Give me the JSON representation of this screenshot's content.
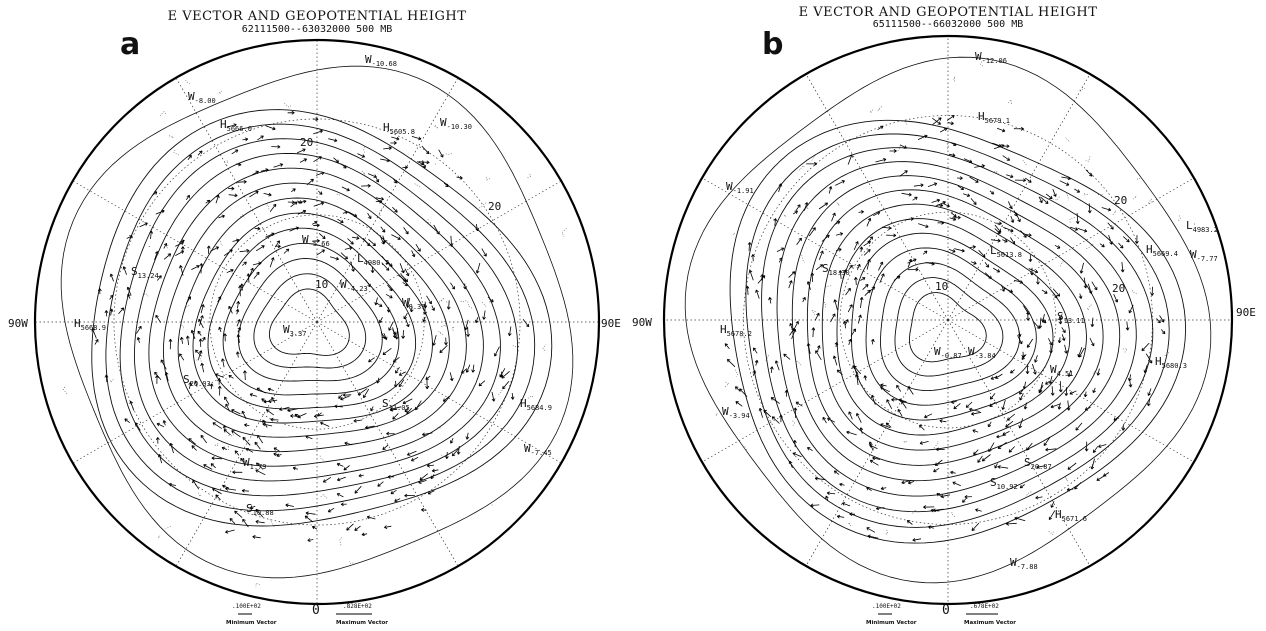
{
  "panels": [
    {
      "letter": "a",
      "title": "E VECTOR AND GEOPOTENTIAL HEIGHT",
      "subtitle": "62111500--63032000   500 MB",
      "left_label": "90W",
      "right_label": "90E",
      "contour_labels": [
        "20",
        "10",
        "20"
      ],
      "centers": [
        {
          "letter": "W",
          "sub": "-8.00"
        },
        {
          "letter": "W",
          "sub": "-10.68"
        },
        {
          "letter": "W",
          "sub": "-10.30"
        },
        {
          "letter": "H",
          "sub": "5666.0"
        },
        {
          "letter": "H",
          "sub": "5605.8"
        },
        {
          "letter": "S",
          "sub": "13.24"
        },
        {
          "letter": "H",
          "sub": "5668.9"
        },
        {
          "letter": "W",
          "sub": "-5.66"
        },
        {
          "letter": "L",
          "sub": "4980.7"
        },
        {
          "letter": "W",
          "sub": "-4.23"
        },
        {
          "letter": "W",
          "sub": "8.37"
        },
        {
          "letter": "W",
          "sub": "3.37"
        },
        {
          "letter": "S",
          "sub": "20.03"
        },
        {
          "letter": "S",
          "sub": "11.05"
        },
        {
          "letter": "H",
          "sub": "5684.9"
        },
        {
          "letter": "W",
          "sub": "-7.45"
        },
        {
          "letter": "W",
          "sub": "1.79"
        },
        {
          "letter": "S",
          "sub": "10.88"
        }
      ],
      "legend": {
        "min_value": ".100E+02",
        "min_label": "Minimum Vector",
        "zero": "0",
        "max_value": ".828E+02",
        "max_label": "Maximum Vector"
      }
    },
    {
      "letter": "b",
      "title": "E VECTOR AND GEOPOTENTIAL HEIGHT",
      "subtitle": "65111500--66032000   500 MB",
      "left_label": "90W",
      "right_label": "90E",
      "contour_labels": [
        "20",
        "20",
        "10"
      ],
      "centers": [
        {
          "letter": "W",
          "sub": "-12.06"
        },
        {
          "letter": "H",
          "sub": "5679.1"
        },
        {
          "letter": "W",
          "sub": "-1.91"
        },
        {
          "letter": "L",
          "sub": "5013.8"
        },
        {
          "letter": "L",
          "sub": "4983.2"
        },
        {
          "letter": "H",
          "sub": "5669.4"
        },
        {
          "letter": "W",
          "sub": "-7.77"
        },
        {
          "letter": "S",
          "sub": "18.30"
        },
        {
          "letter": "H",
          "sub": "5678.2"
        },
        {
          "letter": "W",
          "sub": "-0.87"
        },
        {
          "letter": "W",
          "sub": "-3.84"
        },
        {
          "letter": "S",
          "sub": "13.11"
        },
        {
          "letter": "H",
          "sub": "5680.3"
        },
        {
          "letter": "W",
          "sub": "-3.94"
        },
        {
          "letter": "W",
          "sub": "4.51"
        },
        {
          "letter": "S",
          "sub": "20.87"
        },
        {
          "letter": "S",
          "sub": "10.92"
        },
        {
          "letter": "H",
          "sub": "5671.6"
        },
        {
          "letter": "W",
          "sub": "-7.88"
        }
      ],
      "legend": {
        "min_value": ".100E+02",
        "min_label": "Minimum Vector",
        "zero": "0",
        "max_value": ".678E+02",
        "max_label": "Maximum Vector"
      }
    }
  ]
}
